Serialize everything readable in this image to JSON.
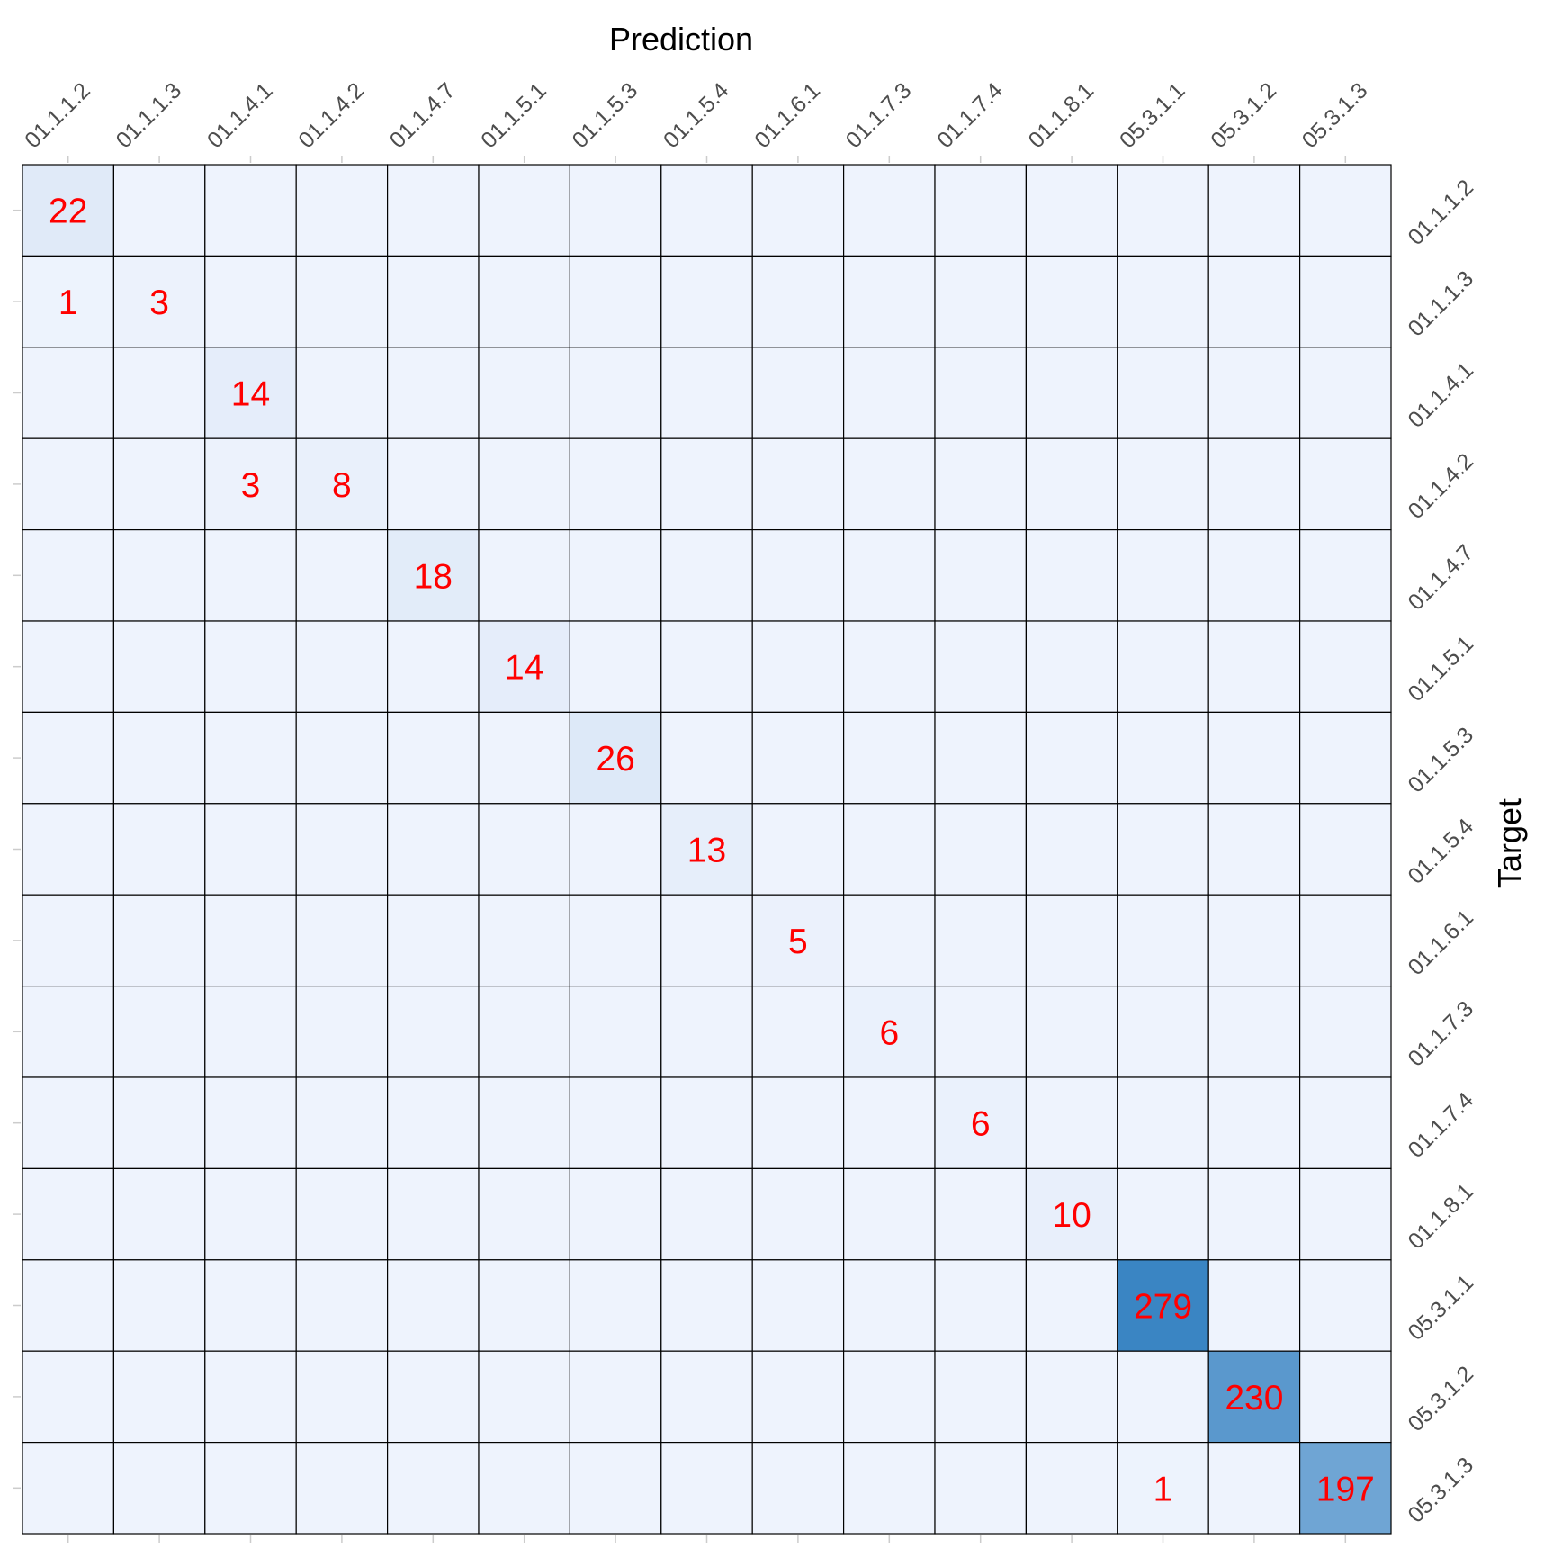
{
  "chart_data": {
    "type": "heatmap",
    "xlabel": "Prediction",
    "ylabel": "Target",
    "x_categories": [
      "01.1.1.2",
      "01.1.1.3",
      "01.1.4.1",
      "01.1.4.2",
      "01.1.4.7",
      "01.1.5.1",
      "01.1.5.3",
      "01.1.5.4",
      "01.1.6.1",
      "01.1.7.3",
      "01.1.7.4",
      "01.1.8.1",
      "05.3.1.1",
      "05.3.1.2",
      "05.3.1.3"
    ],
    "y_categories": [
      "01.1.1.2",
      "01.1.1.3",
      "01.1.4.1",
      "01.1.4.2",
      "01.1.4.7",
      "01.1.5.1",
      "01.1.5.3",
      "01.1.5.4",
      "01.1.6.1",
      "01.1.7.3",
      "01.1.7.4",
      "01.1.8.1",
      "05.3.1.1",
      "05.3.1.2",
      "05.3.1.3"
    ],
    "values": [
      [
        22,
        0,
        0,
        0,
        0,
        0,
        0,
        0,
        0,
        0,
        0,
        0,
        0,
        0,
        0
      ],
      [
        1,
        3,
        0,
        0,
        0,
        0,
        0,
        0,
        0,
        0,
        0,
        0,
        0,
        0,
        0
      ],
      [
        0,
        0,
        14,
        0,
        0,
        0,
        0,
        0,
        0,
        0,
        0,
        0,
        0,
        0,
        0
      ],
      [
        0,
        0,
        3,
        8,
        0,
        0,
        0,
        0,
        0,
        0,
        0,
        0,
        0,
        0,
        0
      ],
      [
        0,
        0,
        0,
        0,
        18,
        0,
        0,
        0,
        0,
        0,
        0,
        0,
        0,
        0,
        0
      ],
      [
        0,
        0,
        0,
        0,
        0,
        14,
        0,
        0,
        0,
        0,
        0,
        0,
        0,
        0,
        0
      ],
      [
        0,
        0,
        0,
        0,
        0,
        0,
        26,
        0,
        0,
        0,
        0,
        0,
        0,
        0,
        0
      ],
      [
        0,
        0,
        0,
        0,
        0,
        0,
        0,
        13,
        0,
        0,
        0,
        0,
        0,
        0,
        0
      ],
      [
        0,
        0,
        0,
        0,
        0,
        0,
        0,
        0,
        5,
        0,
        0,
        0,
        0,
        0,
        0
      ],
      [
        0,
        0,
        0,
        0,
        0,
        0,
        0,
        0,
        0,
        6,
        0,
        0,
        0,
        0,
        0
      ],
      [
        0,
        0,
        0,
        0,
        0,
        0,
        0,
        0,
        0,
        0,
        6,
        0,
        0,
        0,
        0
      ],
      [
        0,
        0,
        0,
        0,
        0,
        0,
        0,
        0,
        0,
        0,
        0,
        10,
        0,
        0,
        0
      ],
      [
        0,
        0,
        0,
        0,
        0,
        0,
        0,
        0,
        0,
        0,
        0,
        0,
        279,
        0,
        0
      ],
      [
        0,
        0,
        0,
        0,
        0,
        0,
        0,
        0,
        0,
        0,
        0,
        0,
        0,
        230,
        0
      ],
      [
        0,
        0,
        0,
        0,
        0,
        0,
        0,
        0,
        0,
        0,
        0,
        0,
        1,
        0,
        197
      ]
    ],
    "zero_cells_labeled": false,
    "color_scale": {
      "low": "#eef3fd",
      "high": "#3a85c3"
    },
    "label_color": "#ff0000",
    "x_axis_position": "top",
    "y_axis_position": "right"
  }
}
